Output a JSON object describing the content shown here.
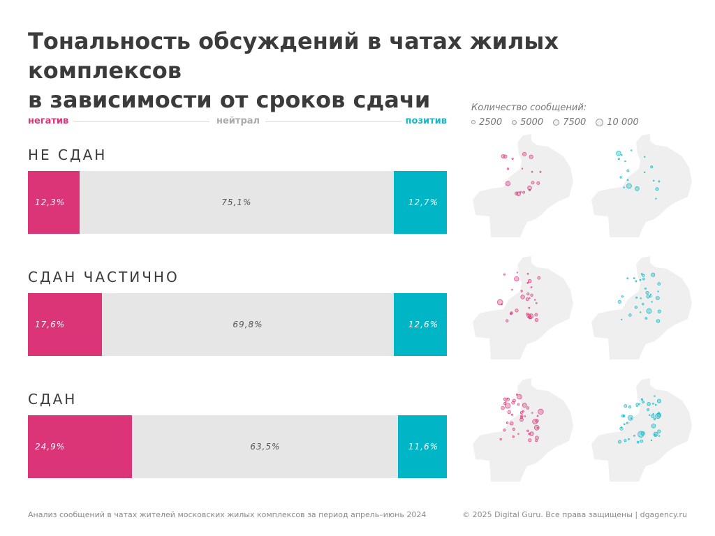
{
  "title": {
    "line1": "Тональность обсуждений в чатах жилых комплексов",
    "line2": "в зависимости от сроков сдачи"
  },
  "legend": {
    "negative": "негатив",
    "neutral": "нейтрал",
    "positive": "позитив"
  },
  "size_legend": {
    "caption": "Количество сообщений:",
    "items": [
      "2500",
      "5000",
      "7500",
      "10 000"
    ]
  },
  "colors": {
    "negative": "#db3577",
    "neutral": "#e6e6e6",
    "positive": "#00b6c6",
    "map_fill": "#efefef"
  },
  "chart_data": {
    "type": "bar",
    "orientation": "horizontal",
    "stacked": true,
    "categories": [
      "НЕ СДАН",
      "СДАН ЧАСТИЧНО",
      "СДАН"
    ],
    "series": [
      {
        "name": "негатив",
        "values": [
          12.3,
          17.6,
          24.9
        ],
        "labels": [
          "12,3%",
          "17,6%",
          "24,9%"
        ]
      },
      {
        "name": "нейтрал",
        "values": [
          75.1,
          69.8,
          63.5
        ],
        "labels": [
          "75,1%",
          "69,8%",
          "63,5%"
        ]
      },
      {
        "name": "позитив",
        "values": [
          12.7,
          12.6,
          11.6
        ],
        "labels": [
          "12,7%",
          "12,6%",
          "11,6%"
        ]
      }
    ],
    "legend_position": "top",
    "xlim": [
      0,
      100
    ]
  },
  "footer": {
    "left": "Анализ сообщений в чатах жителей московских жилых комплексов за период апрель–июнь 2024",
    "right": "© 2025 Digital Guru. Все права защищены | dgagency.ru"
  }
}
